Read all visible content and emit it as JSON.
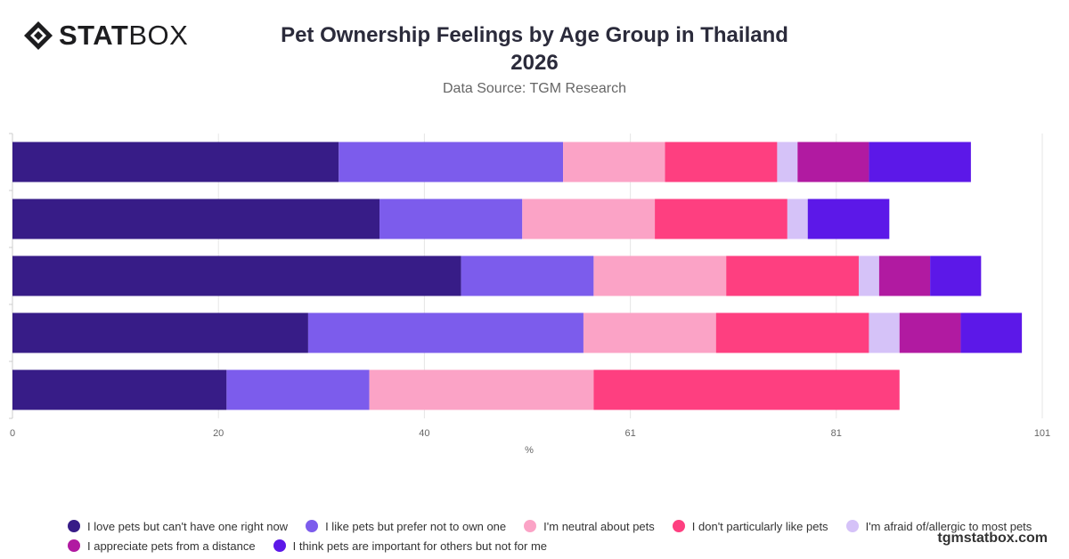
{
  "brand": {
    "logo_bold": "STAT",
    "logo_light": "BOX",
    "logo_icon": "diamond-logo-icon",
    "watermark": "tgmstatbox.com"
  },
  "header": {
    "title_line1": "Pet Ownership Feelings by Age Group in Thailand",
    "title_line2": "2026",
    "subtitle": "Data Source: TGM Research"
  },
  "chart_data": {
    "type": "bar",
    "orientation": "horizontal",
    "stacked": true,
    "title": "Pet Ownership Feelings by Age Group in Thailand 2026",
    "subtitle": "Data Source: TGM Research",
    "xlabel": "%",
    "ylabel": "",
    "categories": [
      "",
      "",
      "",
      "",
      ""
    ],
    "xlim": [
      0,
      101
    ],
    "xticks": [
      "0",
      "20",
      "40",
      "61",
      "81",
      "101"
    ],
    "grid": true,
    "legend_position": "bottom",
    "series": [
      {
        "name": "I love pets but can't have one right now",
        "color": "#371c87",
        "values": [
          32,
          36,
          44,
          29,
          21
        ]
      },
      {
        "name": "I like pets but prefer not to own one",
        "color": "#7c5cec",
        "values": [
          22,
          14,
          13,
          27,
          14
        ]
      },
      {
        "name": "I'm neutral about pets",
        "color": "#fba3c6",
        "values": [
          10,
          13,
          13,
          13,
          22
        ]
      },
      {
        "name": "I don't particularly like pets",
        "color": "#fe3f80",
        "values": [
          11,
          13,
          13,
          15,
          30
        ]
      },
      {
        "name": "I'm afraid of/allergic to most pets",
        "color": "#d5c2f8",
        "values": [
          2,
          2,
          2,
          3,
          0
        ]
      },
      {
        "name": "I appreciate pets from a distance",
        "color": "#b11aa1",
        "values": [
          7,
          0,
          5,
          6,
          0
        ]
      },
      {
        "name": "I think pets are important for others but not for me",
        "color": "#5c18e8",
        "values": [
          10,
          8,
          5,
          6,
          0
        ]
      }
    ]
  }
}
